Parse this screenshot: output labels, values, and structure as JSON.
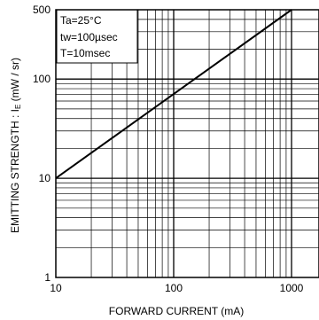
{
  "chart_data": {
    "type": "line",
    "title": "",
    "xlabel": "FORWARD CURRENT (mA)",
    "ylabel": "EMITTING STRENGTH : I",
    "ylabel_sub": "E",
    "ylabel_unit": " (mW / sr)",
    "x_scale": "log",
    "y_scale": "log",
    "xlim": [
      10,
      1000
    ],
    "ylim": [
      1,
      500
    ],
    "x_tick_labels": [
      "10",
      "100",
      "1000"
    ],
    "y_tick_labels": [
      "1",
      "10",
      "100",
      "500"
    ],
    "grid": true,
    "conditions": [
      "Ta=25°C",
      "tw=100µsec",
      "T=10msec"
    ],
    "series": [
      {
        "x": [
          10,
          1000
        ],
        "y": [
          10,
          500
        ]
      }
    ]
  }
}
